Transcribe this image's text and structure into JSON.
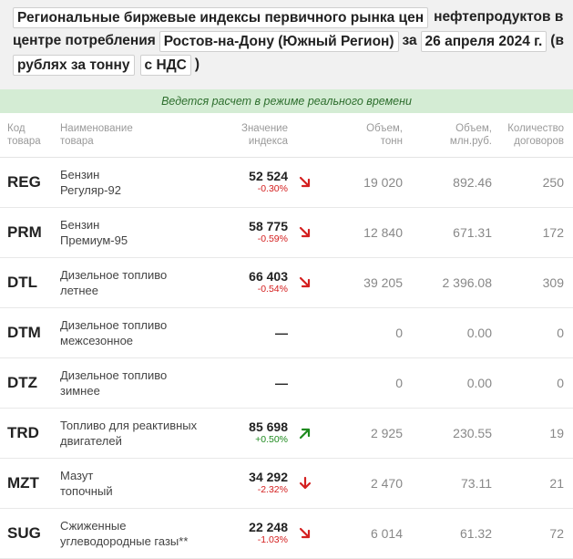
{
  "header": {
    "chip_title": "Региональные биржевые индексы первичного рынка цен",
    "text_after_title": "нефтепродуктов в",
    "text_center": "центре потребления",
    "chip_region": "Ростов-на-Дону (Южный Регион)",
    "text_za": "за",
    "chip_date": "26 апреля 2024 г.",
    "text_paren_open": "(в",
    "chip_unit": "рублях за тонну",
    "chip_vat": "с НДС",
    "text_paren_close": ")"
  },
  "realtime_notice": "Ведется расчет в режиме реального времени",
  "columns": {
    "code": [
      "Код",
      "товара"
    ],
    "name": [
      "Наименование",
      "товара"
    ],
    "index": [
      "Значение",
      "индекса"
    ],
    "volume_t": [
      "Объем,",
      "тонн"
    ],
    "volume_rub": [
      "Объем,",
      "млн.руб."
    ],
    "contracts": [
      "Количество",
      "договоров"
    ]
  },
  "rows": [
    {
      "code": "REG",
      "name1": "Бензин",
      "name2": "Регуляр-92",
      "value": "52 524",
      "change": "-0.30%",
      "trend": "down-right",
      "volume_t": "19 020",
      "volume_rub": "892.46",
      "contracts": "250"
    },
    {
      "code": "PRM",
      "name1": "Бензин",
      "name2": "Премиум-95",
      "value": "58 775",
      "change": "-0.59%",
      "trend": "down-right",
      "volume_t": "12 840",
      "volume_rub": "671.31",
      "contracts": "172"
    },
    {
      "code": "DTL",
      "name1": "Дизельное топливо",
      "name2": "летнее",
      "value": "66 403",
      "change": "-0.54%",
      "trend": "down-right",
      "volume_t": "39 205",
      "volume_rub": "2 396.08",
      "contracts": "309"
    },
    {
      "code": "DTM",
      "name1": "Дизельное топливо",
      "name2": "межсезонное",
      "value": "—",
      "change": "",
      "trend": "none",
      "volume_t": "0",
      "volume_rub": "0.00",
      "contracts": "0"
    },
    {
      "code": "DTZ",
      "name1": "Дизельное топливо",
      "name2": "зимнее",
      "value": "—",
      "change": "",
      "trend": "none",
      "volume_t": "0",
      "volume_rub": "0.00",
      "contracts": "0"
    },
    {
      "code": "TRD",
      "name1": "Топливо для реактивных",
      "name2": "двигателей",
      "value": "85 698",
      "change": "+0.50%",
      "trend": "up-right",
      "volume_t": "2 925",
      "volume_rub": "230.55",
      "contracts": "19"
    },
    {
      "code": "MZT",
      "name1": "Мазут",
      "name2": "топочный",
      "value": "34 292",
      "change": "-2.32%",
      "trend": "down",
      "volume_t": "2 470",
      "volume_rub": "73.11",
      "contracts": "21"
    },
    {
      "code": "SUG",
      "name1": "Сжиженные",
      "name2": "углеводородные газы**",
      "value": "22 248",
      "change": "-1.03%",
      "trend": "down-right",
      "volume_t": "6 014",
      "volume_rub": "61.32",
      "contracts": "72"
    }
  ],
  "colors": {
    "negative": "#d42020",
    "positive": "#1e8a1e",
    "notice_bg": "#d4ecd4",
    "header_bg": "#f1f1f1"
  }
}
